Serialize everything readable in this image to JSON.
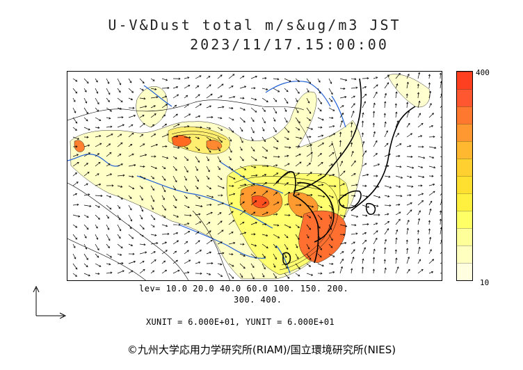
{
  "title": {
    "line1": "U-V&Dust total m/s&ug/m3 JST",
    "line2": "2023/11/17.15:00:00"
  },
  "colorbar": {
    "max_label": "400",
    "min_label": "10",
    "colors": [
      "#ffffe0",
      "#ffffc0",
      "#ffff99",
      "#ffff66",
      "#fff040",
      "#ffe030",
      "#ffd030",
      "#ffb830",
      "#ff9830",
      "#ff7830",
      "#ff5830",
      "#ff4020"
    ]
  },
  "contour_levels": {
    "line1": "lev= 10.0 20.0 40.0 60.0 100. 150. 200.",
    "line2": "300. 400.",
    "values": [
      10,
      20,
      40,
      60,
      100,
      150,
      200,
      300,
      400
    ]
  },
  "vector_units": "XUNIT = 6.000E+01, YUNIT = 6.000E+01",
  "copyright": "©九州大学応用力学研究所(RIAM)/国立環境研究所(NIES)",
  "colors": {
    "coastline": "#000000",
    "rivers": "#1f5fd6",
    "contour": "#000000",
    "vector": "#000000"
  }
}
